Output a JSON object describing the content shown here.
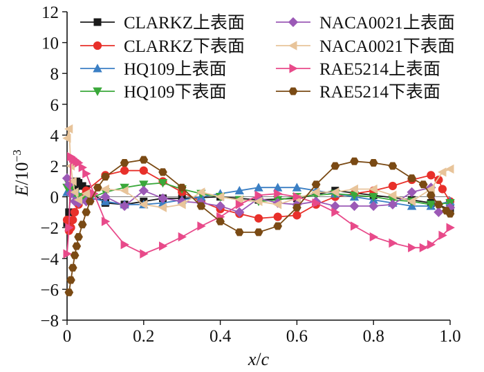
{
  "chart_data": {
    "type": "line",
    "xlabel_var": "x",
    "xlabel_sep": "/",
    "xlabel_den": "c",
    "ylabel_var": "E",
    "ylabel_unit": "/10",
    "ylabel_exp": "−3",
    "xlim": [
      0,
      1.0
    ],
    "ylim": [
      -8,
      12
    ],
    "x_ticks": [
      "0",
      "0.2",
      "0.4",
      "0.6",
      "0.8",
      "1.0"
    ],
    "y_ticks": [
      "−8",
      "−6",
      "−4",
      "−2",
      "0",
      "2",
      "4",
      "6",
      "8",
      "10",
      "12"
    ],
    "grid": false,
    "legend_position": "top",
    "series": [
      {
        "name": "CLARKZ上表面",
        "color": "#1a1a1a",
        "marker": "square",
        "x": [
          0,
          0.005,
          0.01,
          0.015,
          0.02,
          0.025,
          0.03,
          0.04,
          0.05,
          0.1,
          0.15,
          0.2,
          0.25,
          0.3,
          0.4,
          0.5,
          0.6,
          0.7,
          0.8,
          0.9,
          0.95,
          1.0
        ],
        "y": [
          -1.7,
          -1.0,
          0.3,
          0.6,
          0.8,
          1.0,
          0.9,
          0.7,
          0.5,
          -0.4,
          -0.5,
          -0.3,
          -0.1,
          -0.1,
          0,
          -0.2,
          -0.1,
          0.4,
          0.1,
          -0.2,
          -0.4,
          -0.8
        ]
      },
      {
        "name": "CLARKZ下表面",
        "color": "#e8302a",
        "marker": "circle",
        "x": [
          0,
          0.005,
          0.01,
          0.015,
          0.02,
          0.03,
          0.04,
          0.05,
          0.1,
          0.15,
          0.2,
          0.25,
          0.3,
          0.35,
          0.4,
          0.45,
          0.5,
          0.55,
          0.6,
          0.65,
          0.7,
          0.75,
          0.8,
          0.85,
          0.9,
          0.95,
          0.97,
          0.98,
          1.0
        ],
        "y": [
          -1.5,
          -2.2,
          -2.0,
          -1.5,
          -1.0,
          -0.5,
          0,
          0.4,
          1.4,
          1.7,
          1.7,
          1.0,
          0.3,
          -0.3,
          -0.8,
          -1.1,
          -1.4,
          -1.3,
          -1.2,
          -0.5,
          0,
          0.2,
          0.4,
          0.7,
          1.1,
          1.4,
          1.1,
          0.5,
          -0.3
        ]
      },
      {
        "name": "HQ109上表面",
        "color": "#3b7fc4",
        "marker": "triangle",
        "x": [
          0,
          0.005,
          0.01,
          0.02,
          0.03,
          0.05,
          0.1,
          0.15,
          0.2,
          0.25,
          0.3,
          0.35,
          0.4,
          0.45,
          0.5,
          0.55,
          0.6,
          0.65,
          0.7,
          0.75,
          0.8,
          0.85,
          0.9,
          0.95,
          1.0
        ],
        "y": [
          0.3,
          0.5,
          0.4,
          0.2,
          0.1,
          0,
          -0.3,
          -0.5,
          -0.5,
          -0.4,
          -0.2,
          0,
          0.2,
          0.4,
          0.6,
          0.6,
          0.6,
          0.4,
          0.2,
          0,
          -0.2,
          -0.4,
          -0.6,
          -0.6,
          -0.3
        ]
      },
      {
        "name": "HQ109下表面",
        "color": "#3aa83a",
        "marker": "triangle-down",
        "x": [
          0,
          0.005,
          0.01,
          0.02,
          0.03,
          0.05,
          0.1,
          0.15,
          0.2,
          0.25,
          0.3,
          0.35,
          0.4,
          0.45,
          0.5,
          0.55,
          0.6,
          0.65,
          0.7,
          0.75,
          0.8,
          0.85,
          0.9,
          0.95,
          1.0
        ],
        "y": [
          0.6,
          0.8,
          0.5,
          0.2,
          0,
          -0.2,
          0.3,
          0.6,
          0.8,
          0.9,
          0.5,
          0.2,
          0,
          -0.2,
          -0.3,
          -0.2,
          0,
          0.1,
          0.2,
          0.1,
          0,
          -0.2,
          -0.3,
          -0.5,
          -0.4
        ]
      },
      {
        "name": "NACA0021上表面",
        "color": "#9b59b6",
        "marker": "diamond",
        "x": [
          0,
          0.005,
          0.01,
          0.02,
          0.03,
          0.05,
          0.1,
          0.15,
          0.2,
          0.25,
          0.3,
          0.35,
          0.4,
          0.45,
          0.5,
          0.55,
          0.6,
          0.65,
          0.7,
          0.75,
          0.8,
          0.85,
          0.9,
          0.95,
          0.97,
          1.0
        ],
        "y": [
          1.2,
          0.8,
          0.2,
          -0.3,
          -0.4,
          -0.3,
          0,
          -0.6,
          0.4,
          -0.1,
          -0.3,
          -0.4,
          -0.6,
          -1.0,
          -0.1,
          -0.4,
          -0.5,
          -0.3,
          -0.6,
          -0.6,
          -0.6,
          -0.5,
          0.3,
          0.6,
          -1.0,
          -0.7
        ]
      },
      {
        "name": "NACA0021下表面",
        "color": "#e8c49a",
        "marker": "triangle-left",
        "x": [
          0,
          0.005,
          0.01,
          0.015,
          0.02,
          0.03,
          0.05,
          0.1,
          0.15,
          0.2,
          0.25,
          0.3,
          0.35,
          0.4,
          0.45,
          0.5,
          0.55,
          0.6,
          0.65,
          0.7,
          0.75,
          0.8,
          0.85,
          0.9,
          0.95,
          0.98,
          1.0
        ],
        "y": [
          3.8,
          4.4,
          2.0,
          1.0,
          0.3,
          -0.2,
          0.2,
          0.5,
          0.4,
          -0.5,
          -0.7,
          -0.5,
          0.3,
          0,
          -0.2,
          -0.3,
          -0.5,
          -0.1,
          0.3,
          0.3,
          0.5,
          0.5,
          0.1,
          -0.3,
          0.5,
          1.6,
          1.8
        ]
      },
      {
        "name": "RAE5214上表面",
        "color": "#e84a8a",
        "marker": "triangle-right",
        "x": [
          0,
          0.005,
          0.01,
          0.015,
          0.02,
          0.025,
          0.03,
          0.04,
          0.05,
          0.07,
          0.1,
          0.15,
          0.2,
          0.25,
          0.3,
          0.35,
          0.4,
          0.45,
          0.5,
          0.55,
          0.6,
          0.65,
          0.7,
          0.75,
          0.8,
          0.85,
          0.9,
          0.93,
          0.95,
          0.98,
          1.0
        ],
        "y": [
          -3.7,
          -2.0,
          2.6,
          2.5,
          2.4,
          2.3,
          2.2,
          1.9,
          1.5,
          0.2,
          -1.6,
          -3.1,
          -3.7,
          -3.2,
          -2.6,
          -1.9,
          -1.3,
          -0.5,
          0.1,
          0.2,
          0,
          -0.4,
          -1.0,
          -1.9,
          -2.6,
          -3.0,
          -3.3,
          -3.3,
          -3.1,
          -2.5,
          -2.0
        ]
      },
      {
        "name": "RAE5214下表面",
        "color": "#7a4a14",
        "marker": "hexagon",
        "x": [
          0.005,
          0.01,
          0.015,
          0.02,
          0.025,
          0.03,
          0.04,
          0.05,
          0.06,
          0.08,
          0.1,
          0.15,
          0.2,
          0.25,
          0.3,
          0.35,
          0.4,
          0.45,
          0.5,
          0.55,
          0.6,
          0.65,
          0.7,
          0.75,
          0.8,
          0.85,
          0.9,
          0.93,
          0.95,
          0.97,
          0.99,
          1.0
        ],
        "y": [
          -6.2,
          -5.4,
          -4.6,
          -3.8,
          -3.2,
          -2.6,
          -1.8,
          -1.0,
          -0.3,
          0.6,
          1.3,
          2.2,
          2.4,
          1.6,
          0.6,
          -0.6,
          -1.6,
          -2.3,
          -2.3,
          -1.9,
          -0.7,
          0.8,
          2.0,
          2.3,
          2.2,
          2.0,
          1.2,
          0.8,
          0.1,
          -0.5,
          -0.9,
          -1.1
        ]
      }
    ]
  }
}
